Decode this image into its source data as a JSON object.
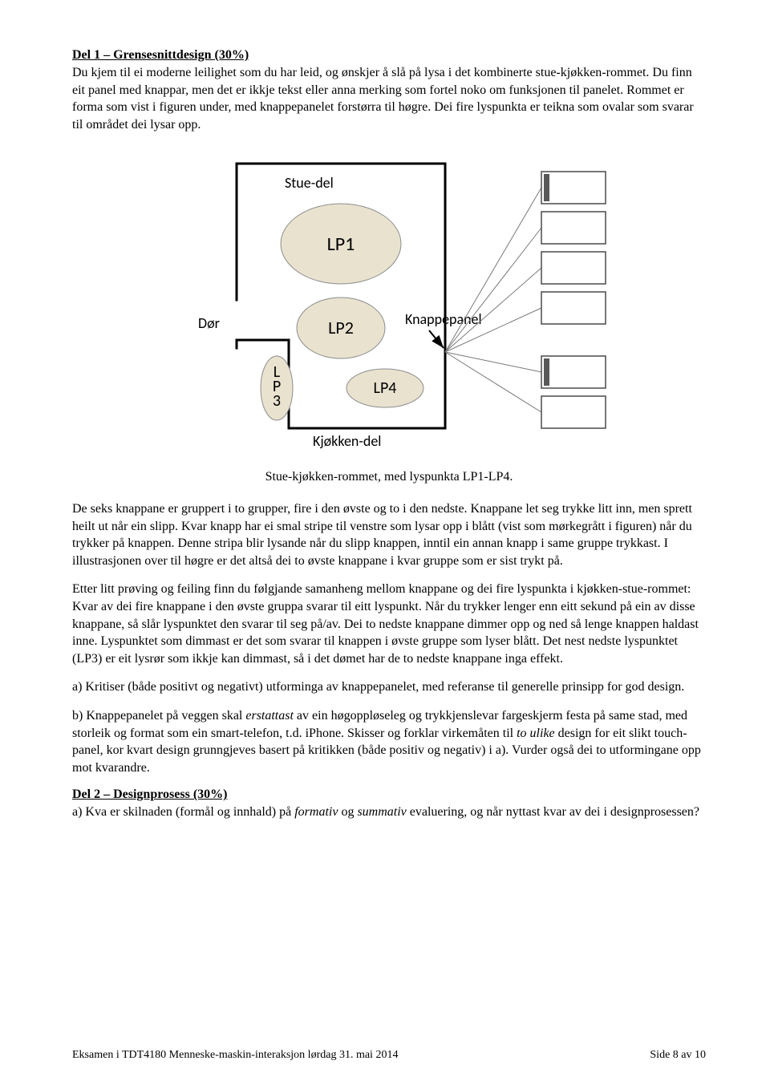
{
  "section1": {
    "heading": "Del 1 – Grensesnittdesign (30%)",
    "para1": "Du kjem til ei moderne leilighet som du har leid, og ønskjer å slå på lysa i det kombinerte stue-kjøkken-rommet. Du finn eit panel med knappar, men det er ikkje tekst eller anna merking som fortel noko om funksjonen til panelet. Rommet er forma som vist i figuren under, med knappepanelet forstørra til høgre. Dei fire lyspunkta er teikna som ovalar som svarar til området dei lysar opp."
  },
  "diagram": {
    "labels": {
      "stue_del": "Stue-del",
      "lp1": "LP1",
      "lp2": "LP2",
      "lp3": "LP3",
      "lp4": "LP4",
      "dor": "Dør",
      "knappepanel": "Knappepanel",
      "kjokken_del": "Kjøkken-del"
    },
    "colors": {
      "room_border": "#000000",
      "oval_fill": "#e8e2cf",
      "oval_border": "#8c8c8c",
      "panel_border": "#4a4a4a",
      "panel_indicator": "#595959",
      "panel_fill": "#ffffff",
      "lead_line": "#7a7a7a",
      "text": "#000000"
    },
    "fontsizes": {
      "label": 18,
      "lp_big": 24,
      "lp_med": 22,
      "lp_small": 20
    },
    "room_line_width": 3,
    "panel_line_width": 1.5,
    "caption": "Stue-kjøkken-rommet, med lyspunkta LP1-LP4."
  },
  "body": {
    "para2": "De seks knappane er gruppert i to grupper, fire i den øvste og to i den nedste. Knappane let seg trykke litt inn, men sprett heilt ut når ein slipp. Kvar knapp har ei smal stripe til venstre som lysar opp i blått (vist som mørkegrått i figuren) når du trykker på knappen. Denne stripa blir lysande når du slipp knappen, inntil ein annan knapp i same gruppe trykkast. I illustrasjonen over til høgre er det altså dei to øvste knappane i kvar gruppe som er sist trykt på.",
    "para3": "Etter litt prøving og feiling finn du følgjande samanheng mellom knappane og dei fire lyspunkta i kjøkken-stue-rommet: Kvar av dei fire knappane i den øvste gruppa svarar til eitt lyspunkt. Når du trykker lenger enn eitt sekund på ein av disse knappane, så slår lyspunktet den svarar til seg på/av. Dei to nedste knappane dimmer opp og ned så lenge knappen haldast inne. Lyspunktet som dimmast er det som svarar til knappen i øvste gruppe som lyser blått. Det nest nedste lyspunktet (LP3) er eit lysrør som ikkje kan dimmast, så i det dømet har de to nedste knappane inga effekt.",
    "para_a_part1": "a) Kritiser (både positivt og negativt) utforminga av knappepanelet, med referanse til generelle prinsipp for god design.",
    "para_b_pre": "b) Knappepanelet på veggen skal ",
    "para_b_em1": "erstattast",
    "para_b_mid1": " av ein høgoppløseleg og trykkjenslevar fargeskjerm festa på same stad, med storleik og format som ein smart-telefon, t.d. iPhone. Skisser og forklar virkemåten til ",
    "para_b_em2": "to ulike",
    "para_b_mid2": " design for eit slikt touch-panel, kor kvart design grunngjeves basert på kritikken (både positiv og negativ) i a). Vurder også dei to utformingane opp mot kvarandre."
  },
  "section2": {
    "heading": "Del 2 – Designprosess (30%)",
    "q_a_pre": "a) Kva er skilnaden (formål og innhald) på ",
    "q_a_em1": "formativ",
    "q_a_mid": " og ",
    "q_a_em2": "summativ",
    "q_a_post": " evaluering, og når nyttast kvar av dei i designprosessen?"
  },
  "footer": {
    "left": "Eksamen i TDT4180 Menneske-maskin-interaksjon lørdag 31. mai 2014",
    "right": "Side 8 av 10"
  }
}
